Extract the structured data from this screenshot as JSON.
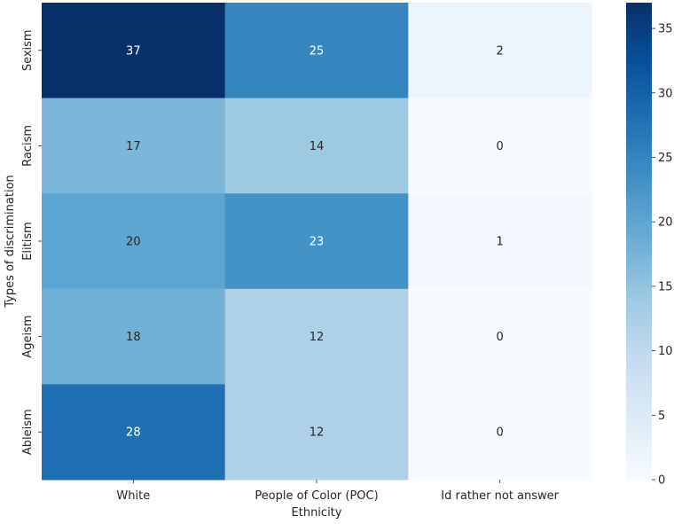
{
  "chart_data": {
    "type": "heatmap",
    "title": "",
    "xlabel": "Ethnicity",
    "ylabel": "Types of discrimination",
    "x_categories": [
      "White",
      "People of Color (POC)",
      "Id rather not answer"
    ],
    "y_categories": [
      "Sexism",
      "Racism",
      "Elitism",
      "Ageism",
      "Ableism"
    ],
    "values": [
      [
        37,
        25,
        2
      ],
      [
        17,
        14,
        0
      ],
      [
        20,
        23,
        1
      ],
      [
        18,
        12,
        0
      ],
      [
        28,
        12,
        0
      ]
    ],
    "annotated": true,
    "colormap": "Blues",
    "color_stops": [
      "#f7fbff",
      "#deebf7",
      "#c6dbef",
      "#9ecae1",
      "#6baed6",
      "#4292c6",
      "#2171b5",
      "#08519c",
      "#08306b"
    ],
    "vmin": 0,
    "vmax": 37,
    "colorbar_ticks": [
      0,
      5,
      10,
      15,
      20,
      25,
      30,
      35
    ],
    "grid": false,
    "legend": "colorbar-right"
  }
}
